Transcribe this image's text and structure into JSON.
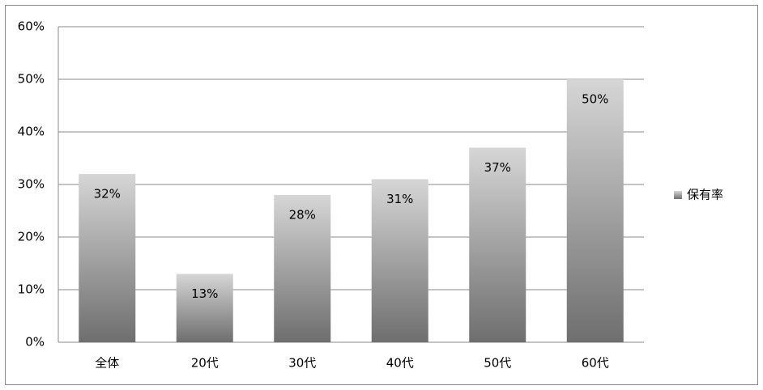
{
  "chart_data": {
    "type": "bar",
    "categories": [
      "全体",
      "20代",
      "30代",
      "40代",
      "50代",
      "60代"
    ],
    "series": [
      {
        "name": "保有率",
        "values": [
          32,
          13,
          28,
          31,
          37,
          50
        ],
        "value_labels": [
          "32%",
          "13%",
          "28%",
          "31%",
          "37%",
          "50%"
        ]
      }
    ],
    "ylim": [
      0,
      60
    ],
    "yticks": [
      {
        "value": 0,
        "label": "0%"
      },
      {
        "value": 10,
        "label": "10%"
      },
      {
        "value": 20,
        "label": "20%"
      },
      {
        "value": 30,
        "label": "30%"
      },
      {
        "value": 40,
        "label": "40%"
      },
      {
        "value": 50,
        "label": "50%"
      },
      {
        "value": 60,
        "label": "60%"
      }
    ],
    "grid": true,
    "legend": "right"
  }
}
